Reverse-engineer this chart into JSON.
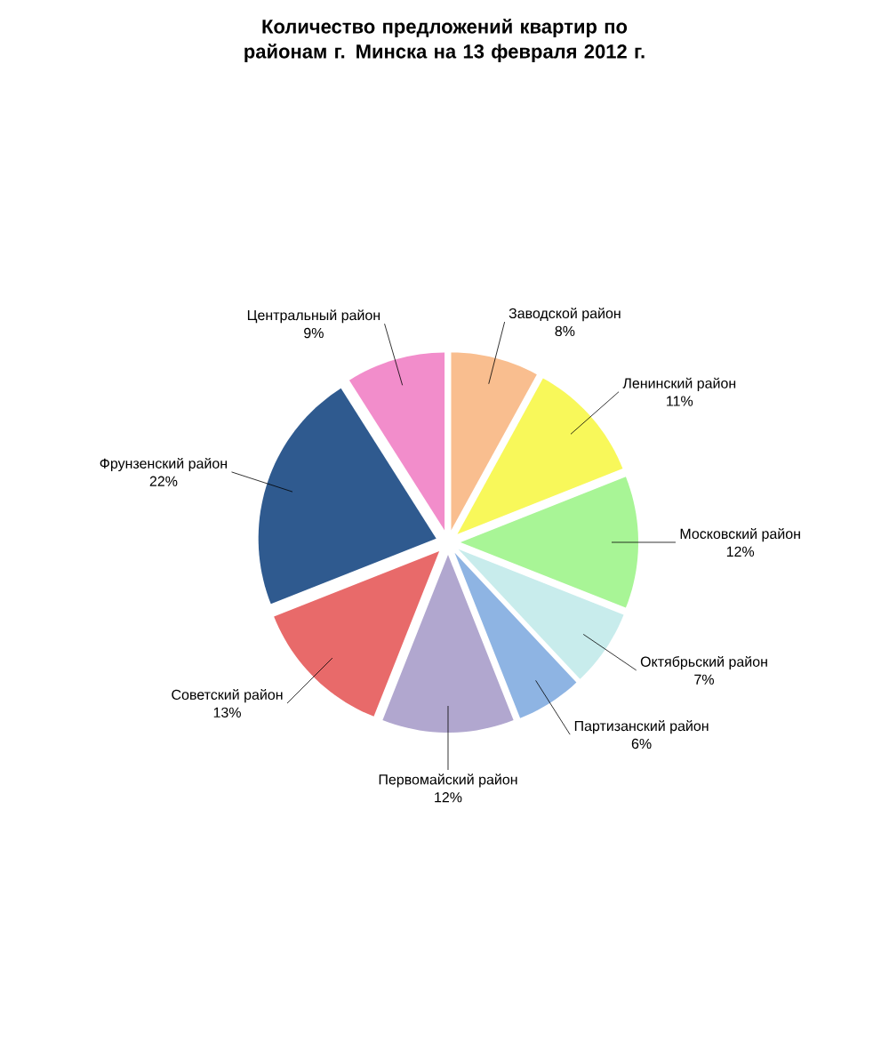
{
  "chart_data": {
    "type": "pie",
    "title": "Количество предложений квартир по районам г. Минска на 13 февраля 2012 г.",
    "categories": [
      "Заводской район",
      "Ленинский район",
      "Московский район",
      "Октябрьский район",
      "Партизанский район",
      "Первомайский район",
      "Советский район",
      "Фрунзенский район",
      "Центральный район"
    ],
    "values": [
      8,
      11,
      12,
      7,
      6,
      12,
      13,
      22,
      9
    ],
    "colors": [
      "#f9be8f",
      "#f8f85a",
      "#a8f596",
      "#c8ecec",
      "#8eb4e3",
      "#b1a7cf",
      "#e86a6a",
      "#2f5a8f",
      "#f28dcb"
    ],
    "value_labels": [
      "8%",
      "11%",
      "12%",
      "7%",
      "6%",
      "12%",
      "13%",
      "22%",
      "9%"
    ]
  }
}
